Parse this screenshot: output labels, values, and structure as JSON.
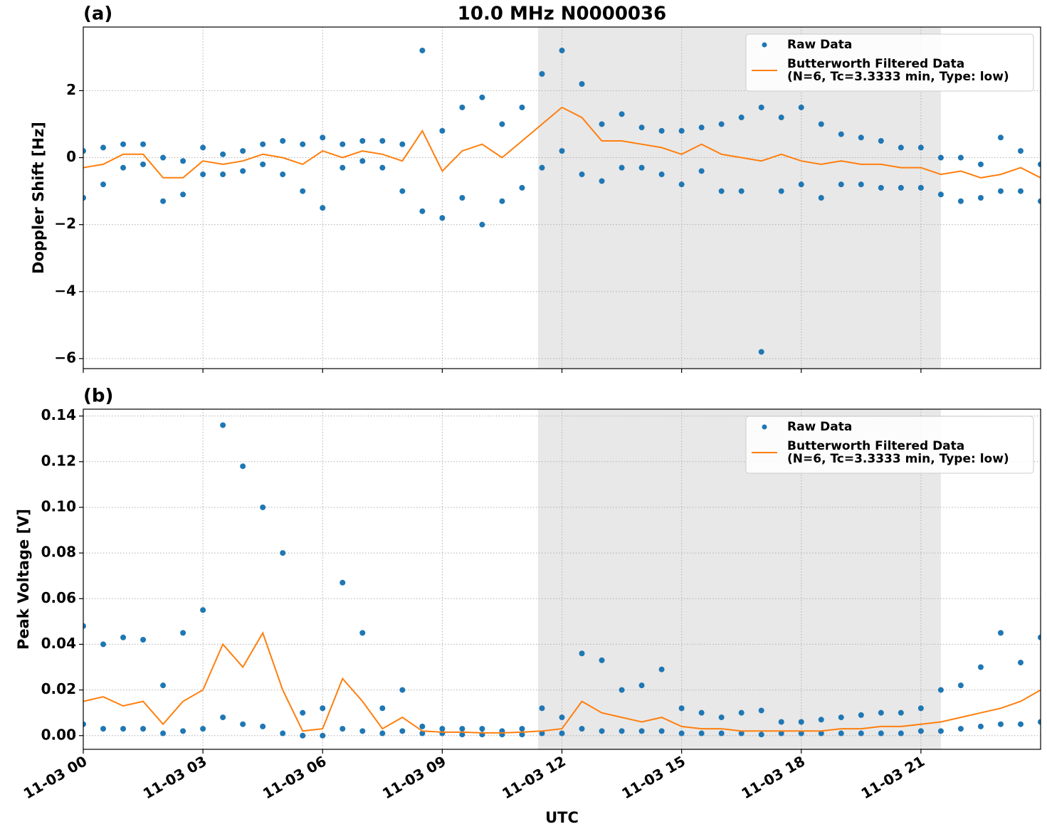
{
  "chart_data": [
    {
      "type": "scatter_line",
      "title": "10.0 MHz N0000036",
      "panel_label": "(a)",
      "ylabel": "Doppler Shift [Hz]",
      "xlim": [
        0,
        24
      ],
      "xticks": [
        0,
        3,
        6,
        9,
        12,
        15,
        18,
        21
      ],
      "ylim": [
        -6.3,
        3.9
      ],
      "yticks": [
        {
          "value": -6,
          "label": "−6"
        },
        {
          "value": -4,
          "label": "−4"
        },
        {
          "value": -2,
          "label": "−2"
        },
        0,
        2
      ],
      "grid": true,
      "legend": "upper right",
      "shade": [
        11.4,
        21.5
      ],
      "series": [
        {
          "name": "Raw Data",
          "kind": "scatter",
          "color": "#1f77b4",
          "x": [
            0,
            0,
            0.5,
            0.5,
            1,
            1,
            1.5,
            1.5,
            2,
            2,
            2.5,
            2.5,
            3,
            3,
            3.5,
            3.5,
            4,
            4,
            4.5,
            4.5,
            5,
            5,
            5.5,
            5.5,
            6,
            6,
            6.5,
            6.5,
            7,
            7,
            7.5,
            7.5,
            8,
            8,
            8.5,
            8.5,
            9,
            9,
            9.5,
            9.5,
            10,
            10,
            10.5,
            10.5,
            11,
            11,
            11.5,
            11.5,
            12,
            12,
            12.5,
            12.5,
            13,
            13,
            13.5,
            13.5,
            14,
            14,
            14.5,
            14.5,
            15,
            15,
            15.5,
            15.5,
            16,
            16,
            16.5,
            16.5,
            17,
            17,
            17.5,
            17.5,
            18,
            18,
            18.5,
            18.5,
            19,
            19,
            19.5,
            19.5,
            20,
            20,
            20.5,
            20.5,
            21,
            21,
            21.5,
            21.5,
            22,
            22,
            22.5,
            22.5,
            23,
            23,
            23.5,
            23.5,
            24,
            24
          ],
          "values": [
            0.2,
            -1.2,
            0.3,
            -0.8,
            0.4,
            -0.3,
            0.4,
            -0.2,
            0.0,
            -1.3,
            -0.1,
            -1.1,
            0.3,
            -0.5,
            0.1,
            -0.5,
            0.2,
            -0.4,
            0.4,
            -0.2,
            0.5,
            -0.5,
            0.4,
            -1.0,
            0.6,
            -1.5,
            0.4,
            -0.3,
            0.5,
            -0.1,
            0.5,
            -0.3,
            0.4,
            -1.0,
            3.2,
            -1.6,
            0.8,
            -1.8,
            1.5,
            -1.2,
            1.8,
            -2.0,
            1.0,
            -1.3,
            1.5,
            -0.9,
            2.5,
            -0.3,
            3.2,
            0.2,
            2.2,
            -0.5,
            1.0,
            -0.7,
            1.3,
            -0.3,
            0.9,
            -0.3,
            0.8,
            -0.5,
            0.8,
            -0.8,
            0.9,
            -0.4,
            1.0,
            -1.0,
            1.2,
            -1.0,
            1.5,
            -5.8,
            1.2,
            -1.0,
            1.5,
            -0.8,
            1.0,
            -1.2,
            0.7,
            -0.8,
            0.6,
            -0.8,
            0.5,
            -0.9,
            0.3,
            -0.9,
            0.3,
            -0.9,
            0.0,
            -1.1,
            0.0,
            -1.3,
            -0.2,
            -1.2,
            0.6,
            -1.0,
            0.2,
            -1.0,
            -0.2,
            -1.3
          ]
        },
        {
          "name": "Butterworth Filtered Data\n(N=6, Tc=3.3333 min, Type: low)",
          "kind": "line",
          "color": "#ff7f0e",
          "x": [
            0,
            0.5,
            1,
            1.5,
            2,
            2.5,
            3,
            3.5,
            4,
            4.5,
            5,
            5.5,
            6,
            6.5,
            7,
            7.5,
            8,
            8.5,
            9,
            9.5,
            10,
            10.5,
            11,
            11.5,
            12,
            12.5,
            13,
            13.5,
            14,
            14.5,
            15,
            15.5,
            16,
            16.5,
            17,
            17.5,
            18,
            18.5,
            19,
            19.5,
            20,
            20.5,
            21,
            21.5,
            22,
            22.5,
            23,
            23.5,
            24
          ],
          "values": [
            -0.3,
            -0.2,
            0.1,
            0.1,
            -0.6,
            -0.6,
            -0.1,
            -0.2,
            -0.1,
            0.1,
            0.0,
            -0.2,
            0.2,
            0.0,
            0.2,
            0.1,
            -0.1,
            0.8,
            -0.4,
            0.2,
            0.4,
            0.0,
            0.5,
            1.0,
            1.5,
            1.2,
            0.5,
            0.5,
            0.4,
            0.3,
            0.1,
            0.4,
            0.1,
            0.0,
            -0.1,
            0.1,
            -0.1,
            -0.2,
            -0.1,
            -0.2,
            -0.2,
            -0.3,
            -0.3,
            -0.5,
            -0.4,
            -0.6,
            -0.5,
            -0.3,
            -0.6
          ]
        }
      ]
    },
    {
      "type": "scatter_line",
      "panel_label": "(b)",
      "ylabel": "Peak Voltage [V]",
      "xlabel": "UTC",
      "xlim": [
        0,
        24
      ],
      "xticks": [
        {
          "value": 0,
          "label": "11-03 00"
        },
        {
          "value": 3,
          "label": "11-03 03"
        },
        {
          "value": 6,
          "label": "11-03 06"
        },
        {
          "value": 9,
          "label": "11-03 09"
        },
        {
          "value": 12,
          "label": "11-03 12"
        },
        {
          "value": 15,
          "label": "11-03 15"
        },
        {
          "value": 18,
          "label": "11-03 18"
        },
        {
          "value": 21,
          "label": "11-03 21"
        }
      ],
      "ylim": [
        -0.006,
        0.143
      ],
      "yticks": [
        {
          "value": 0,
          "label": "0.00"
        },
        {
          "value": 0.02,
          "label": "0.02"
        },
        {
          "value": 0.04,
          "label": "0.04"
        },
        {
          "value": 0.06,
          "label": "0.06"
        },
        {
          "value": 0.08,
          "label": "0.08"
        },
        {
          "value": 0.1,
          "label": "0.10"
        },
        {
          "value": 0.12,
          "label": "0.12"
        },
        {
          "value": 0.14,
          "label": "0.14"
        }
      ],
      "grid": true,
      "legend": "upper right",
      "shade": [
        11.4,
        21.5
      ],
      "series": [
        {
          "name": "Raw Data",
          "kind": "scatter",
          "color": "#1f77b4",
          "x": [
            0,
            0,
            0.5,
            0.5,
            1,
            1,
            1.5,
            1.5,
            2,
            2,
            2.5,
            2.5,
            3,
            3,
            3.5,
            3.5,
            4,
            4,
            4.5,
            4.5,
            5,
            5,
            5.5,
            5.5,
            6,
            6,
            6.5,
            6.5,
            7,
            7,
            7.5,
            7.5,
            8,
            8,
            8.5,
            8.5,
            9,
            9,
            9.5,
            9.5,
            10,
            10,
            10.5,
            10.5,
            11,
            11,
            11.5,
            11.5,
            12,
            12,
            12.5,
            12.5,
            13,
            13,
            13.5,
            13.5,
            14,
            14,
            14.5,
            14.5,
            15,
            15,
            15.5,
            15.5,
            16,
            16,
            16.5,
            16.5,
            17,
            17,
            17.5,
            17.5,
            18,
            18,
            18.5,
            18.5,
            19,
            19,
            19.5,
            19.5,
            20,
            20,
            20.5,
            20.5,
            21,
            21,
            21.5,
            21.5,
            22,
            22,
            22.5,
            22.5,
            23,
            23,
            23.5,
            23.5,
            24,
            24
          ],
          "values": [
            0.048,
            0.005,
            0.04,
            0.003,
            0.043,
            0.003,
            0.042,
            0.003,
            0.022,
            0.001,
            0.045,
            0.002,
            0.055,
            0.003,
            0.136,
            0.008,
            0.118,
            0.005,
            0.1,
            0.004,
            0.08,
            0.001,
            0.01,
            0.0,
            0.012,
            0.0,
            0.067,
            0.003,
            0.045,
            0.002,
            0.012,
            0.001,
            0.02,
            0.002,
            0.004,
            0.001,
            0.003,
            0.001,
            0.003,
            0.0005,
            0.003,
            0.0005,
            0.002,
            0.0005,
            0.003,
            0.0005,
            0.012,
            0.001,
            0.008,
            0.001,
            0.036,
            0.003,
            0.033,
            0.002,
            0.02,
            0.002,
            0.022,
            0.002,
            0.029,
            0.002,
            0.012,
            0.001,
            0.01,
            0.001,
            0.008,
            0.001,
            0.01,
            0.001,
            0.011,
            0.0005,
            0.006,
            0.001,
            0.006,
            0.001,
            0.007,
            0.001,
            0.008,
            0.001,
            0.009,
            0.001,
            0.01,
            0.001,
            0.01,
            0.001,
            0.012,
            0.002,
            0.02,
            0.002,
            0.022,
            0.003,
            0.03,
            0.004,
            0.045,
            0.005,
            0.032,
            0.005,
            0.043,
            0.006
          ]
        },
        {
          "name": "Butterworth Filtered Data\n(N=6, Tc=3.3333 min, Type: low)",
          "kind": "line",
          "color": "#ff7f0e",
          "x": [
            0,
            0.5,
            1,
            1.5,
            2,
            2.5,
            3,
            3.5,
            4,
            4.5,
            5,
            5.5,
            6,
            6.5,
            7,
            7.5,
            8,
            8.5,
            9,
            9.5,
            10,
            10.5,
            11,
            11.5,
            12,
            12.5,
            13,
            13.5,
            14,
            14.5,
            15,
            15.5,
            16,
            16.5,
            17,
            17.5,
            18,
            18.5,
            19,
            19.5,
            20,
            20.5,
            21,
            21.5,
            22,
            22.5,
            23,
            23.5,
            24
          ],
          "values": [
            0.015,
            0.017,
            0.013,
            0.015,
            0.005,
            0.015,
            0.02,
            0.04,
            0.03,
            0.045,
            0.02,
            0.002,
            0.003,
            0.025,
            0.015,
            0.003,
            0.008,
            0.002,
            0.0015,
            0.0015,
            0.0012,
            0.0012,
            0.0015,
            0.002,
            0.003,
            0.015,
            0.01,
            0.008,
            0.006,
            0.008,
            0.004,
            0.003,
            0.003,
            0.002,
            0.002,
            0.002,
            0.002,
            0.002,
            0.003,
            0.003,
            0.004,
            0.004,
            0.005,
            0.006,
            0.008,
            0.01,
            0.012,
            0.015,
            0.02
          ]
        }
      ]
    }
  ]
}
